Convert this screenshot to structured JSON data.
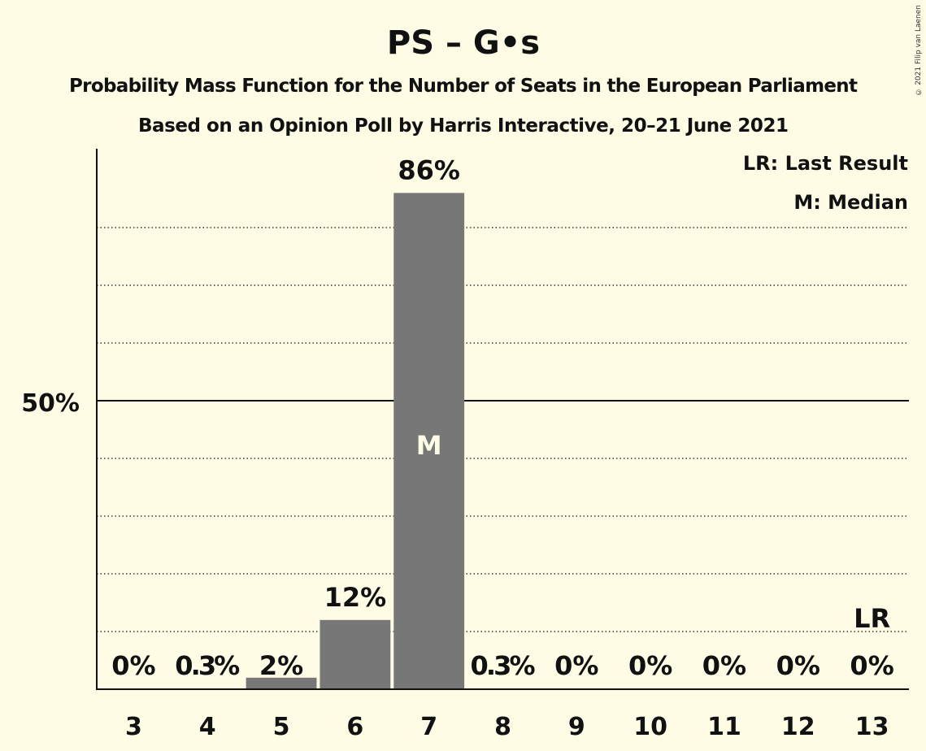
{
  "title": "PS – G•s",
  "subtitle": "Probability Mass Function for the Number of Seats in the European Parliament",
  "subtitle2": "Based on an Opinion Poll by Harris Interactive, 20–21 June 2021",
  "copyright": "© 2021 Filip van Laenen",
  "legend": {
    "lr": "LR: Last Result",
    "median": "M: Median"
  },
  "colors": {
    "background": "#fffce6",
    "bar": "#777777",
    "text": "#111111"
  },
  "chart_data": {
    "type": "bar",
    "categories": [
      "3",
      "4",
      "5",
      "6",
      "7",
      "8",
      "9",
      "10",
      "11",
      "12",
      "13"
    ],
    "values": [
      0,
      0.3,
      2,
      12,
      86,
      0.3,
      0,
      0,
      0,
      0,
      0
    ],
    "labels": [
      "0%",
      "0.3%",
      "2%",
      "12%",
      "86%",
      "0.3%",
      "0%",
      "0%",
      "0%",
      "0%",
      "0%"
    ],
    "ylim": [
      0,
      94
    ],
    "ytick_label": "50%",
    "ytick_value": 50,
    "dotted_gridlines": [
      10,
      20,
      30,
      40,
      60,
      70,
      80
    ],
    "median_category": "7",
    "median_marker": "M",
    "last_result_category": "13",
    "last_result_marker": "LR",
    "legend_position": "top-right"
  }
}
